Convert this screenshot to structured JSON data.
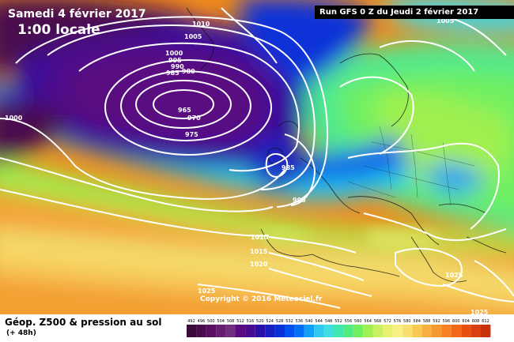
{
  "header": {
    "date": "Samedi 4 février 2017",
    "local_time": "1:00 locale",
    "run_info": "Run GFS 0 Z du Jeudi 2 février 2017"
  },
  "map": {
    "copyright": "Copyright © 2016 Meteociel.fr",
    "pressure_labels": [
      "1010",
      "1005",
      "1000",
      "995",
      "990",
      "985",
      "980",
      "965",
      "970",
      "975",
      "1000",
      "985",
      "995",
      "1010",
      "1015",
      "1020",
      "1025",
      "1025",
      "1025",
      "1005"
    ]
  },
  "footer": {
    "title": "Géop. Z500 & pression au sol",
    "subtitle": "(+ 48h)"
  },
  "legend": {
    "values": [
      "492",
      "496",
      "500",
      "504",
      "508",
      "512",
      "516",
      "520",
      "524",
      "528",
      "532",
      "536",
      "540",
      "544",
      "548",
      "552",
      "556",
      "560",
      "564",
      "568",
      "572",
      "576",
      "580",
      "584",
      "588",
      "592",
      "596",
      "600",
      "604",
      "608",
      "612"
    ],
    "colors": [
      "#3a0a3a",
      "#4a0c4e",
      "#5a1062",
      "#661f70",
      "#6e2d80",
      "#5a0a80",
      "#4a0a90",
      "#2810a8",
      "#1a20c0",
      "#0a30d8",
      "#0050f0",
      "#0070f8",
      "#10a0f8",
      "#30c8f0",
      "#40e0e0",
      "#40e8b0",
      "#50ec80",
      "#70f060",
      "#a0f050",
      "#c8f060",
      "#e8f070",
      "#f8f080",
      "#f8e070",
      "#f8c850",
      "#f8b040",
      "#f89830",
      "#f88020",
      "#f06818",
      "#e85010",
      "#d84010",
      "#c83008"
    ]
  }
}
